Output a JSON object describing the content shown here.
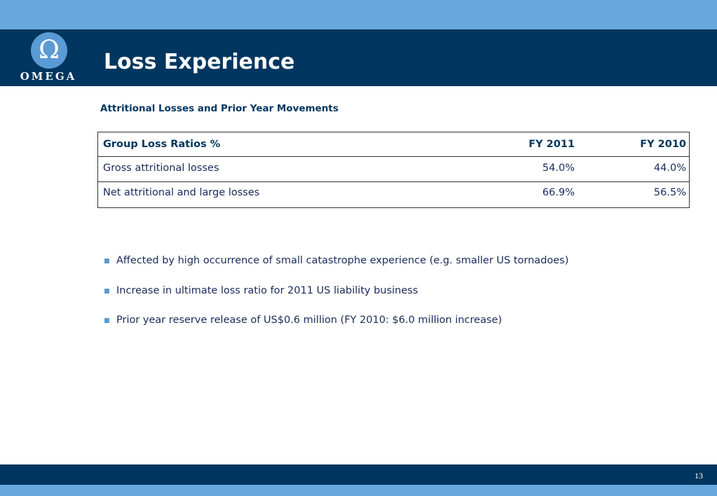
{
  "header": {
    "title": "Loss Experience",
    "logo_text": "OMEGA",
    "logo_symbol": "Ω"
  },
  "subtitle": "Attritional Losses  and Prior Year Movements",
  "table": {
    "headers": [
      "Group Loss Ratios %",
      "FY 2011",
      "FY 2010"
    ],
    "rows": [
      [
        "Gross attritional losses",
        "54.0%",
        "44.0%"
      ],
      [
        "Net attritional and large losses",
        "66.9%",
        "56.5%"
      ]
    ]
  },
  "bullets": [
    "Affected by high occurrence of small catastrophe experience (e.g. smaller US tornadoes)",
    "Increase in ultimate loss ratio for 2011 US liability business",
    "Prior year reserve release of US$0.6 million (FY 2010: $6.0 million increase)"
  ],
  "footer": {
    "page_number": "13"
  },
  "colors": {
    "header_navy": "#00365f",
    "accent_blue": "#69a8dd",
    "bullet_blue": "#5b9bd5"
  }
}
